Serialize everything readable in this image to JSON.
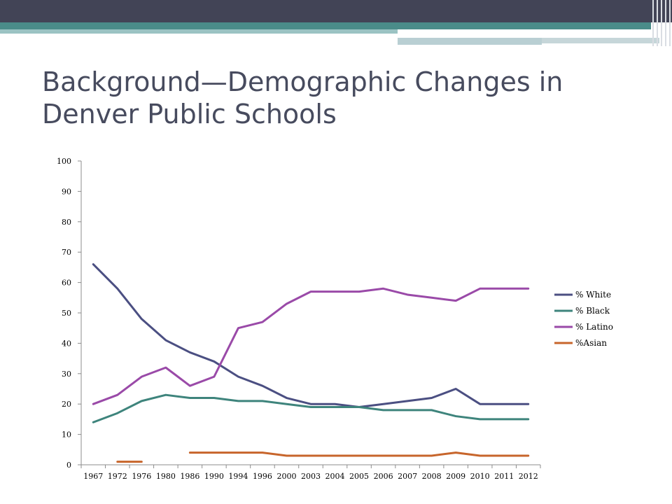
{
  "slide": {
    "title": "Background—Demographic Changes in Denver Public Schools"
  },
  "theme": {
    "header_dark": "#424456",
    "header_teal": "#4a8c89"
  },
  "chart_data": {
    "type": "line",
    "title": "",
    "xlabel": "",
    "ylabel": "",
    "ylim": [
      0,
      100
    ],
    "yticks": [
      0,
      10,
      20,
      30,
      40,
      50,
      60,
      70,
      80,
      90,
      100
    ],
    "categories": [
      "1967",
      "1972",
      "1976",
      "1980",
      "1986",
      "1990",
      "1994",
      "1996",
      "2000",
      "2003",
      "2004",
      "2005",
      "2006",
      "2007",
      "2008",
      "2009",
      "2010",
      "2011",
      "2012"
    ],
    "grid": false,
    "legend_position": "right",
    "series": [
      {
        "name": "% White",
        "color": "#4b4f82",
        "values": [
          66,
          58,
          48,
          41,
          37,
          34,
          29,
          26,
          22,
          20,
          20,
          19,
          20,
          21,
          22,
          25,
          20,
          20,
          20
        ]
      },
      {
        "name": "% Black",
        "color": "#3e847c",
        "values": [
          14,
          17,
          21,
          23,
          22,
          22,
          21,
          21,
          20,
          19,
          19,
          19,
          18,
          18,
          18,
          16,
          15,
          15,
          15
        ]
      },
      {
        "name": "% Latino",
        "color": "#9a4aa8",
        "values": [
          20,
          23,
          29,
          32,
          26,
          29,
          45,
          47,
          53,
          57,
          57,
          57,
          58,
          56,
          55,
          54,
          58,
          58,
          58
        ]
      },
      {
        "name": "%Asian",
        "color": "#c7652b",
        "values": [
          null,
          1,
          1,
          null,
          4,
          4,
          4,
          4,
          3,
          3,
          3,
          3,
          3,
          3,
          3,
          4,
          3,
          3,
          3
        ]
      }
    ]
  }
}
